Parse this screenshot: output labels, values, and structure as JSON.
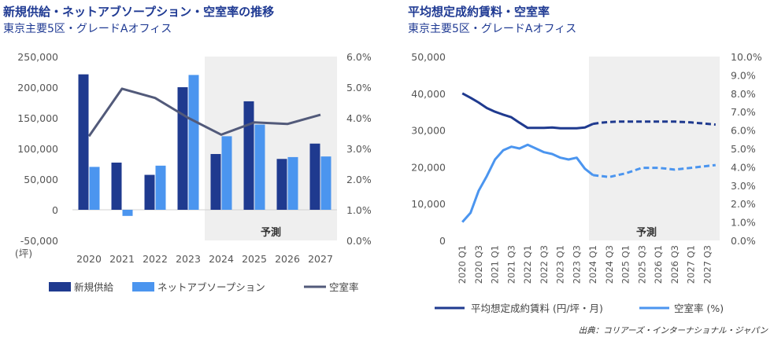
{
  "colors": {
    "dark_navy": "#1f3a8f",
    "light_blue": "#4b95ef",
    "slate": "#525a7a",
    "forecast_bg": "#efefef",
    "title_blue": "#1f3a93"
  },
  "source": "出典：コリアーズ・インターナショナル・ジャパン",
  "chart_data": [
    {
      "type": "bar",
      "title": "新規供給・ネットアブソープション・空室率の推移",
      "subtitle": "東京主要5区・グレードAオフィス",
      "categories": [
        "2020",
        "2021",
        "2022",
        "2023",
        "2024",
        "2025",
        "2026",
        "2027"
      ],
      "y_unit_label": "(坪)",
      "ylim": [
        -50000,
        250000
      ],
      "y_ticks": [
        "250,000",
        "200,000",
        "150,000",
        "100,000",
        "50,000",
        "0",
        "-50,000"
      ],
      "y2lim": [
        0,
        6
      ],
      "y2_ticks": [
        "6.0%",
        "5.0%",
        "4.0%",
        "3.0%",
        "2.0%",
        "1.0%",
        "0.0%"
      ],
      "forecast_label": "予測",
      "forecast_from": "2024",
      "series": [
        {
          "name": "新規供給",
          "kind": "bar",
          "color": "#1f3a8f",
          "values": [
            221000,
            77000,
            57000,
            200000,
            91000,
            177000,
            83000,
            108000
          ]
        },
        {
          "name": "ネットアブソープション",
          "kind": "bar",
          "color": "#4b95ef",
          "values": [
            70000,
            -10000,
            72000,
            220000,
            120000,
            139000,
            86000,
            87000
          ]
        },
        {
          "name": "空室率",
          "kind": "line",
          "axis": "right",
          "color": "#525a7a",
          "values": [
            3.4,
            4.95,
            4.65,
            4.0,
            3.45,
            3.85,
            3.8,
            4.1
          ]
        }
      ],
      "legend_position": "bottom"
    },
    {
      "type": "line",
      "title": "平均想定成約賃料・空室率",
      "subtitle": "東京主要5区・グレードAオフィス",
      "x": [
        "2020 Q1",
        "2020 Q2",
        "2020 Q3",
        "2020 Q4",
        "2021 Q1",
        "2021 Q2",
        "2021 Q3",
        "2021 Q4",
        "2022 Q1",
        "2022 Q2",
        "2022 Q3",
        "2022 Q4",
        "2023 Q1",
        "2023 Q2",
        "2023 Q3",
        "2023 Q4",
        "2024 Q1",
        "2024 Q2",
        "2024 Q3",
        "2024 Q4",
        "2025 Q1",
        "2025 Q2",
        "2025 Q3",
        "2025 Q4",
        "2026 Q1",
        "2026 Q2",
        "2026 Q3",
        "2026 Q4",
        "2027 Q1",
        "2027 Q2",
        "2027 Q3",
        "2027 Q4"
      ],
      "x_tick_labels": [
        "2020 Q1",
        "2020 Q3",
        "2021 Q1",
        "2021 Q3",
        "2022 Q1",
        "2022 Q3",
        "2023 Q1",
        "2023 Q3",
        "2024 Q1",
        "2024 Q3",
        "2025 Q1",
        "2025 Q3",
        "2026 Q1",
        "2026 Q3",
        "2027 Q1",
        "2027 Q3"
      ],
      "ylim": [
        0,
        50000
      ],
      "y_ticks": [
        "50,000",
        "40,000",
        "30,000",
        "20,000",
        "10,000",
        "0"
      ],
      "y2lim": [
        0,
        10
      ],
      "y2_ticks": [
        "10.0%",
        "9.0%",
        "8.0%",
        "7.0%",
        "6.0%",
        "5.0%",
        "4.0%",
        "3.0%",
        "2.0%",
        "1.0%",
        "0.0%"
      ],
      "forecast_label": "予測",
      "forecast_from_index": 16,
      "series": [
        {
          "name": "平均想定成約賃料 (円/坪・月)",
          "axis": "left",
          "color": "#1f3a8f",
          "values": [
            40000,
            38800,
            37500,
            36000,
            35000,
            34200,
            33500,
            32000,
            30600,
            30600,
            30600,
            30700,
            30500,
            30500,
            30500,
            30700,
            31700,
            32000,
            32200,
            32300,
            32300,
            32300,
            32300,
            32300,
            32300,
            32300,
            32300,
            32200,
            32100,
            31900,
            31700,
            31500
          ]
        },
        {
          "name": "空室率 (%)",
          "axis": "right",
          "color": "#4b95ef",
          "values": [
            1.0,
            1.5,
            2.7,
            3.5,
            4.4,
            4.9,
            5.1,
            5.0,
            5.2,
            5.0,
            4.8,
            4.7,
            4.5,
            4.4,
            4.5,
            3.9,
            3.55,
            3.5,
            3.45,
            3.55,
            3.65,
            3.8,
            3.95,
            3.95,
            3.95,
            3.9,
            3.85,
            3.9,
            3.95,
            4.0,
            4.05,
            4.1
          ]
        }
      ],
      "legend_position": "bottom"
    }
  ]
}
